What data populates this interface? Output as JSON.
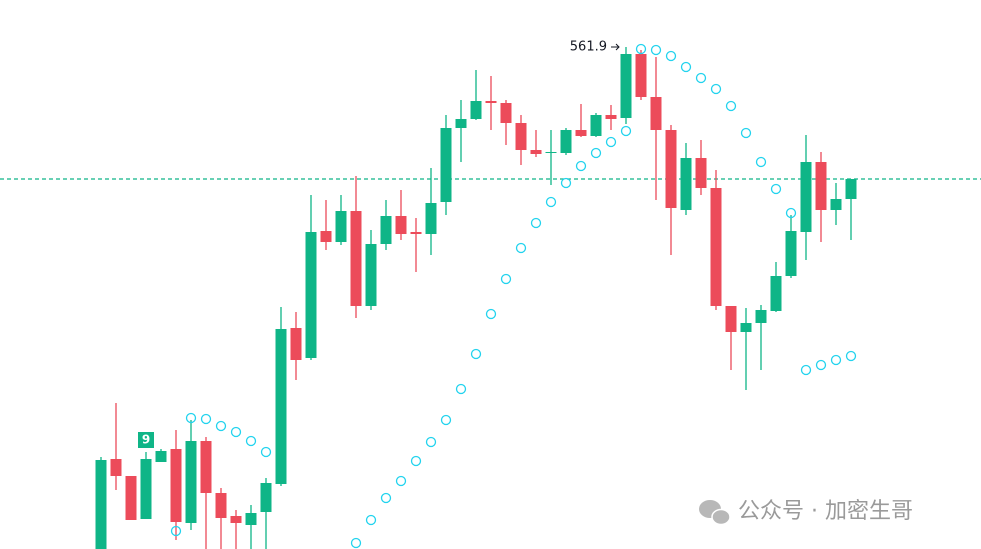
{
  "chart_data": {
    "type": "candlestick",
    "open": [
      511.7,
      520.7,
      519.0,
      514.7,
      520.4,
      521.7,
      514.3,
      522.5,
      517.3,
      515.0,
      514.1,
      515.4,
      518.2,
      533.8,
      530.8,
      543.5,
      542.4,
      545.5,
      536.0,
      542.2,
      545.0,
      543.4,
      543.2,
      546.4,
      553.8,
      554.7,
      556.5,
      556.3,
      554.3,
      551.6,
      551.3,
      551.3,
      553.6,
      553.0,
      555.1,
      554.8,
      561.2,
      556.9,
      553.6,
      545.6,
      550.8,
      547.8,
      536.0,
      533.4,
      534.3,
      535.5,
      539.0,
      543.4,
      550.4,
      545.6,
      546.7
    ],
    "high": [
      520.9,
      526.3,
      519.0,
      521.4,
      521.7,
      523.6,
      524.6,
      522.9,
      517.8,
      515.6,
      516.1,
      518.8,
      535.9,
      535.4,
      547.1,
      546.6,
      547.1,
      549.0,
      543.6,
      546.6,
      547.6,
      544.8,
      549.8,
      555.1,
      556.6,
      559.6,
      559.0,
      556.6,
      555.1,
      553.6,
      553.6,
      553.8,
      556.2,
      555.3,
      556.1,
      561.9,
      561.6,
      560.9,
      554.1,
      552.3,
      552.6,
      549.6,
      536.0,
      535.8,
      536.1,
      540.4,
      545.1,
      553.1,
      551.4,
      548.3,
      548.7
    ],
    "low": [
      511.7,
      517.6,
      514.6,
      514.7,
      520.4,
      512.6,
      513.6,
      511.7,
      511.7,
      511.7,
      511.7,
      511.7,
      518.0,
      528.6,
      530.6,
      541.6,
      542.1,
      534.8,
      535.6,
      541.6,
      542.6,
      539.4,
      541.1,
      545.1,
      550.4,
      554.6,
      553.6,
      552.1,
      550.1,
      550.9,
      548.1,
      551.1,
      552.9,
      552.9,
      553.6,
      554.2,
      556.6,
      546.6,
      541.1,
      545.1,
      547.1,
      535.6,
      529.6,
      527.6,
      529.6,
      535.4,
      538.8,
      540.6,
      542.4,
      544.1,
      542.6
    ],
    "close": [
      520.6,
      519.0,
      514.6,
      520.7,
      521.5,
      514.4,
      522.5,
      517.3,
      514.8,
      514.3,
      515.3,
      518.3,
      533.7,
      530.6,
      543.4,
      542.4,
      545.5,
      536.0,
      542.2,
      545.0,
      543.2,
      543.2,
      546.3,
      553.8,
      554.7,
      556.5,
      556.3,
      554.3,
      551.6,
      551.2,
      551.4,
      553.6,
      553.0,
      555.1,
      554.7,
      561.2,
      556.9,
      553.6,
      545.8,
      550.8,
      547.8,
      536.0,
      533.4,
      534.3,
      535.6,
      539.0,
      543.5,
      550.4,
      545.6,
      546.7,
      548.7
    ],
    "psar": [
      null,
      null,
      null,
      null,
      null,
      513.5,
      524.8,
      524.7,
      524.0,
      523.4,
      522.5,
      521.4,
      null,
      null,
      null,
      null,
      null,
      512.3,
      514.6,
      516.8,
      518.5,
      520.5,
      522.4,
      524.6,
      527.7,
      531.2,
      535.2,
      538.7,
      541.8,
      544.3,
      546.4,
      548.3,
      550.0,
      551.3,
      552.4,
      553.5,
      561.7,
      561.6,
      561.0,
      559.9,
      558.8,
      557.7,
      556.0,
      553.3,
      550.4,
      547.7,
      545.3,
      529.6,
      530.1,
      530.6,
      531.0
    ],
    "ylim": [
      511.7,
      566.6
    ],
    "up_color": "#0fb587",
    "down_color": "#ec4b5a",
    "psar_color": "#22d3ee",
    "markers": [
      {
        "label": "9"
      }
    ],
    "watermark": "公众号 · 加密生哥"
  }
}
